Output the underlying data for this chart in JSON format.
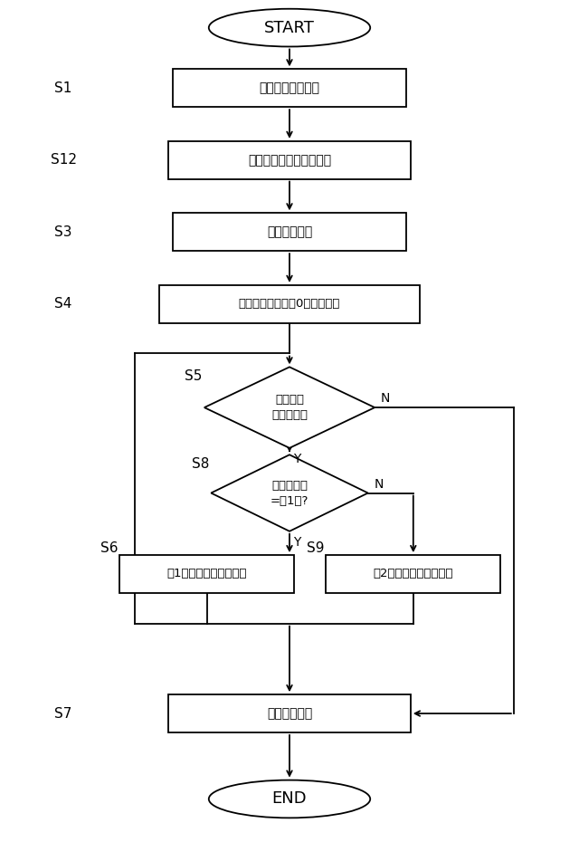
{
  "bg_color": "#ffffff",
  "line_color": "#000000",
  "text_color": "#000000",
  "start_text": "START",
  "end_text": "END",
  "s1_label": "S1",
  "s1_text": "ユーザー認証処理",
  "s12_label": "S12",
  "s12_text": "取引初期入力・設定処理",
  "s3_label": "S3",
  "s3_text": "入金確認処理",
  "s4_label": "S4",
  "s4_text": "回数カウンタに〝0〟をセット",
  "s5_label": "S5",
  "s5_text": "取引継続\n条件成立？",
  "s8_label": "S8",
  "s8_text": "取引モード\n=〝1〟?",
  "s6_label": "S6",
  "s6_text": "第1の取引支援ルーチン",
  "s9_label": "S9",
  "s9_text": "第2の取引支援ルーチン",
  "s7_label": "S7",
  "s7_text": "取引終了処理",
  "y_label": "Y",
  "n_label": "N"
}
